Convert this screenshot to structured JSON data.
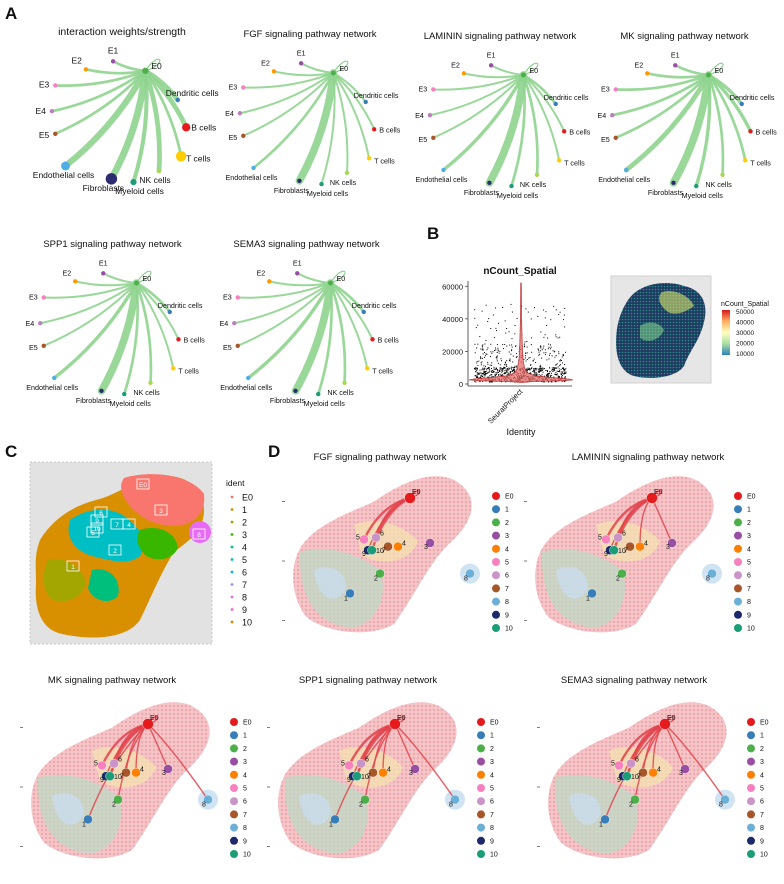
{
  "panel_labels": {
    "a": "A",
    "b": "B",
    "c": "C",
    "d": "D"
  },
  "panel_a": {
    "networks": [
      {
        "title": "interaction weights/strength",
        "weights": [
          0.3,
          0.3,
          0.3,
          0.3,
          0.3,
          0.3,
          0.6,
          0.6,
          0.3,
          0.6,
          0.5,
          0.9,
          0.8,
          0.3
        ],
        "sizes": [
          1.2,
          0.8,
          0.8,
          0.8,
          0.8,
          0.8,
          0.8,
          1.6,
          2.0,
          0.8,
          1.2,
          2.2,
          1.7
        ]
      },
      {
        "title": "FGF signaling pathway network",
        "weights": [
          0.2,
          0.2,
          0.2,
          0.2,
          0.2,
          0.2,
          0.2,
          0.2,
          0.2,
          0.2,
          0.2,
          1.0,
          0.3,
          0.2
        ],
        "sizes": [
          1,
          0.8,
          0.8,
          0.8,
          0.8,
          0.8,
          0.8,
          0.8,
          0.8,
          0.8,
          0.8,
          0.8,
          0.8
        ]
      },
      {
        "title": "LAMININ signaling pathway network",
        "weights": [
          0.2,
          0.2,
          0.2,
          0.2,
          0.2,
          0.2,
          0.3,
          0.2,
          0.2,
          0.3,
          0.3,
          1.0,
          0.4,
          0.3
        ],
        "sizes": [
          1,
          0.8,
          0.8,
          0.8,
          0.8,
          0.8,
          0.8,
          0.8,
          0.8,
          0.8,
          0.8,
          0.8,
          0.8
        ]
      },
      {
        "title": "MK signaling pathway network",
        "weights": [
          0.3,
          0.3,
          0.3,
          0.3,
          0.3,
          0.3,
          0.4,
          0.4,
          0.3,
          0.3,
          0.4,
          1.0,
          0.6,
          0.4
        ],
        "sizes": [
          1,
          0.8,
          0.8,
          0.8,
          0.8,
          0.8,
          0.8,
          0.8,
          0.8,
          0.8,
          0.8,
          0.8,
          0.8
        ]
      },
      {
        "title": "SPP1 signaling pathway network",
        "weights": [
          0.2,
          0.2,
          0.2,
          0.2,
          0.2,
          0.2,
          0.3,
          0.2,
          0.2,
          0.3,
          0.3,
          1.0,
          0.4,
          0.3
        ],
        "sizes": [
          1,
          0.8,
          0.8,
          0.8,
          0.8,
          0.8,
          0.8,
          0.8,
          0.8,
          0.8,
          0.8,
          0.8,
          0.8
        ]
      },
      {
        "title": "SEMA3 signaling pathway network",
        "weights": [
          0.2,
          0.2,
          0.2,
          0.2,
          0.2,
          0.2,
          0.3,
          0.2,
          0.2,
          0.3,
          0.3,
          1.0,
          0.4,
          0.3
        ],
        "sizes": [
          1,
          0.8,
          0.8,
          0.8,
          0.8,
          0.8,
          0.8,
          0.8,
          0.8,
          0.8,
          0.8,
          0.8,
          0.8
        ]
      }
    ],
    "nodes": [
      "E0",
      "E1",
      "E2",
      "E3",
      "E4",
      "E5",
      "Dendritic cells",
      "B cells",
      "T cells",
      "NK cells",
      "Myeloid cells",
      "Fibroblasts",
      "Endothelial cells"
    ],
    "node_colors": [
      "#4daf4a",
      "#984ea3",
      "#ff9900",
      "#f781bf",
      "#bc80bd",
      "#a65628",
      "#377eb8",
      "#e41a1c",
      "#ffcc00",
      "#a6d854",
      "#1b9e77",
      "#2b2d6e",
      "#4eaee5"
    ]
  },
  "panel_b": {
    "violin": {
      "type": "violin",
      "title": "nCount_Spatial",
      "xlabel": "Identity",
      "category": "SeuratProject",
      "yticks": [
        0,
        20000,
        40000,
        60000
      ],
      "ylim": [
        0,
        62000
      ],
      "color": "#e56a6a"
    },
    "spatial": {
      "legend_title": "nCount_Spatial",
      "legend_ticks": [
        "50000",
        "40000",
        "30000",
        "20000",
        "10000"
      ],
      "legend_colors": [
        "#d7191c",
        "#fdae61",
        "#ffffbf",
        "#abdda4",
        "#2b83ba"
      ]
    }
  },
  "panel_c": {
    "legend_title": "ident",
    "idents": [
      "E0",
      "1",
      "2",
      "3",
      "4",
      "5",
      "6",
      "7",
      "8",
      "9",
      "10"
    ],
    "colors": [
      "#f8766d",
      "#d89000",
      "#a3a500",
      "#39b600",
      "#00bf7d",
      "#00bfc4",
      "#00b0f6",
      "#9590ff",
      "#e76bf3",
      "#ff62bc",
      "#e58700"
    ]
  },
  "panel_d": {
    "networks": [
      {
        "title": "FGF signaling pathway network",
        "flows": [
          5,
          6,
          10,
          9
        ]
      },
      {
        "title": "LAMININ signaling pathway network",
        "flows": [
          5,
          6,
          10,
          9,
          4,
          3
        ]
      },
      {
        "title": "MK signaling pathway network",
        "flows": [
          5,
          6,
          10,
          9,
          4,
          7,
          2,
          3,
          8,
          1
        ]
      },
      {
        "title": "SPP1 signaling pathway network",
        "flows": [
          5,
          6,
          10,
          9,
          4,
          7,
          2,
          3,
          8,
          1
        ]
      },
      {
        "title": "SEMA3 signaling pathway network",
        "flows": [
          5,
          6,
          10,
          9,
          4,
          7,
          2,
          3,
          8,
          1
        ]
      }
    ],
    "legend_labels": [
      "E0",
      "1",
      "2",
      "3",
      "4",
      "5",
      "6",
      "7",
      "8",
      "9",
      "10"
    ],
    "legend_colors": [
      "#e41a1c",
      "#377eb8",
      "#4daf4a",
      "#984ea3",
      "#ff7f00",
      "#f781bf",
      "#c994c7",
      "#a65628",
      "#6baed6",
      "#1c2a6b",
      "#1b9e77"
    ]
  }
}
